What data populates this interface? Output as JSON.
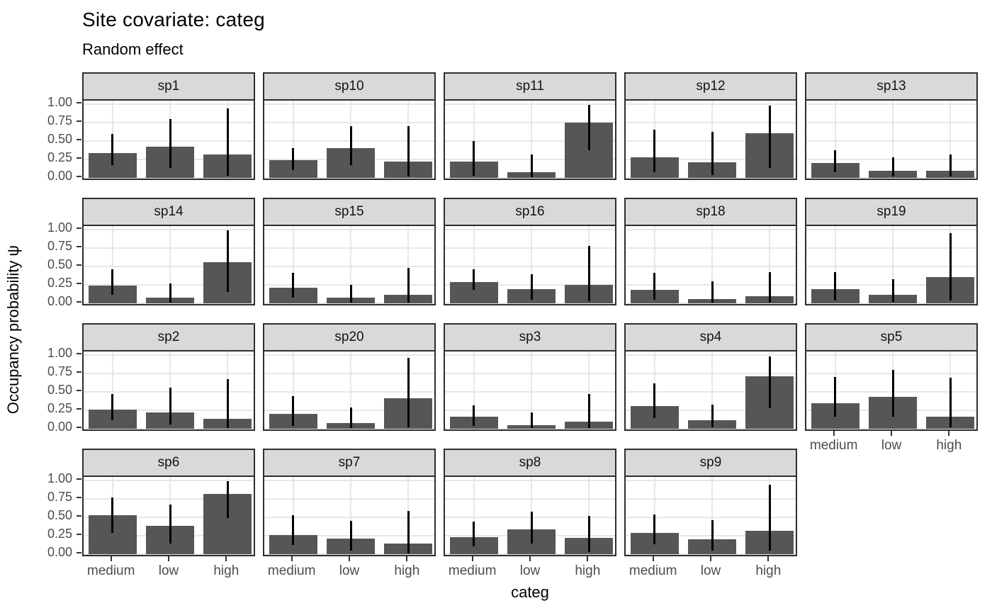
{
  "header": {
    "title": "Site covariate: categ",
    "subtitle": "Random effect"
  },
  "colors": {
    "bar_fill": "#565656",
    "error_bar": "#000000",
    "strip_background": "#D9D9D9",
    "panel_border": "#2E2E2E",
    "gridline": "#E7E7E7",
    "axis_text": "#4D4D4D",
    "title_text": "#000000"
  },
  "chart_data": {
    "type": "bar",
    "title": "Site covariate: categ",
    "subtitle": "Random effect",
    "xlabel": "categ",
    "ylabel": "Occupancy probability ψ",
    "categories": [
      "medium",
      "low",
      "high"
    ],
    "ylim": [
      0,
      1
    ],
    "y_tick_values": [
      1.0,
      0.75,
      0.5,
      0.25,
      0.0
    ],
    "y_tick_labels": [
      "1.00",
      "0.75",
      "0.50",
      "0.25",
      "0.00"
    ],
    "grid": true,
    "legend_position": "none",
    "error_bars": true,
    "facet_layout": {
      "rows": 4,
      "cols": 5
    },
    "facets": [
      {
        "label": "sp1",
        "row": 0,
        "col": 0,
        "values": [
          0.34,
          0.42,
          0.32
        ],
        "ci_low": [
          0.17,
          0.13,
          0.03
        ],
        "ci_high": [
          0.6,
          0.8,
          0.94
        ]
      },
      {
        "label": "sp10",
        "row": 0,
        "col": 1,
        "values": [
          0.24,
          0.4,
          0.22
        ],
        "ci_low": [
          0.1,
          0.17,
          0.02
        ],
        "ci_high": [
          0.4,
          0.7,
          0.7
        ]
      },
      {
        "label": "sp11",
        "row": 0,
        "col": 2,
        "values": [
          0.22,
          0.08,
          0.75
        ],
        "ci_low": [
          0.03,
          0.01,
          0.37
        ],
        "ci_high": [
          0.5,
          0.32,
          0.99
        ]
      },
      {
        "label": "sp12",
        "row": 0,
        "col": 3,
        "values": [
          0.28,
          0.21,
          0.61
        ],
        "ci_low": [
          0.08,
          0.04,
          0.13
        ],
        "ci_high": [
          0.65,
          0.63,
          0.98
        ]
      },
      {
        "label": "sp13",
        "row": 0,
        "col": 4,
        "values": [
          0.2,
          0.09,
          0.09
        ],
        "ci_low": [
          0.08,
          0.02,
          0.02
        ],
        "ci_high": [
          0.37,
          0.28,
          0.32
        ]
      },
      {
        "label": "sp14",
        "row": 1,
        "col": 0,
        "values": [
          0.24,
          0.08,
          0.56
        ],
        "ci_low": [
          0.11,
          0.01,
          0.15
        ],
        "ci_high": [
          0.46,
          0.27,
          0.99
        ]
      },
      {
        "label": "sp15",
        "row": 1,
        "col": 1,
        "values": [
          0.21,
          0.08,
          0.11
        ],
        "ci_low": [
          0.08,
          0.01,
          0.01
        ],
        "ci_high": [
          0.41,
          0.25,
          0.48
        ]
      },
      {
        "label": "sp16",
        "row": 1,
        "col": 2,
        "values": [
          0.29,
          0.19,
          0.25
        ],
        "ci_low": [
          0.18,
          0.05,
          0.03
        ],
        "ci_high": [
          0.46,
          0.39,
          0.78
        ]
      },
      {
        "label": "sp18",
        "row": 1,
        "col": 3,
        "values": [
          0.18,
          0.06,
          0.09
        ],
        "ci_low": [
          0.05,
          0.01,
          0.01
        ],
        "ci_high": [
          0.41,
          0.3,
          0.42
        ]
      },
      {
        "label": "sp19",
        "row": 1,
        "col": 4,
        "values": [
          0.19,
          0.11,
          0.36
        ],
        "ci_low": [
          0.04,
          0.02,
          0.04
        ],
        "ci_high": [
          0.42,
          0.33,
          0.95
        ]
      },
      {
        "label": "sp2",
        "row": 2,
        "col": 0,
        "values": [
          0.26,
          0.22,
          0.13
        ],
        "ci_low": [
          0.11,
          0.06,
          0.01
        ],
        "ci_high": [
          0.47,
          0.56,
          0.67
        ]
      },
      {
        "label": "sp20",
        "row": 2,
        "col": 1,
        "values": [
          0.2,
          0.08,
          0.41
        ],
        "ci_low": [
          0.04,
          0.01,
          0.02
        ],
        "ci_high": [
          0.44,
          0.29,
          0.96
        ]
      },
      {
        "label": "sp3",
        "row": 2,
        "col": 2,
        "values": [
          0.16,
          0.05,
          0.09
        ],
        "ci_low": [
          0.04,
          0.01,
          0.01
        ],
        "ci_high": [
          0.32,
          0.22,
          0.47
        ]
      },
      {
        "label": "sp4",
        "row": 2,
        "col": 3,
        "values": [
          0.31,
          0.11,
          0.71
        ],
        "ci_low": [
          0.14,
          0.02,
          0.28
        ],
        "ci_high": [
          0.62,
          0.33,
          0.98
        ]
      },
      {
        "label": "sp5",
        "row": 2,
        "col": 4,
        "values": [
          0.35,
          0.43,
          0.16
        ],
        "ci_low": [
          0.16,
          0.16,
          0.02
        ],
        "ci_high": [
          0.7,
          0.8,
          0.69
        ]
      },
      {
        "label": "sp6",
        "row": 3,
        "col": 0,
        "values": [
          0.53,
          0.38,
          0.82
        ],
        "ci_low": [
          0.29,
          0.14,
          0.49
        ],
        "ci_high": [
          0.77,
          0.67,
          0.99
        ]
      },
      {
        "label": "sp7",
        "row": 3,
        "col": 1,
        "values": [
          0.26,
          0.21,
          0.14
        ],
        "ci_low": [
          0.12,
          0.05,
          0.01
        ],
        "ci_high": [
          0.53,
          0.45,
          0.59
        ]
      },
      {
        "label": "sp8",
        "row": 3,
        "col": 2,
        "values": [
          0.23,
          0.34,
          0.22
        ],
        "ci_low": [
          0.1,
          0.14,
          0.03
        ],
        "ci_high": [
          0.44,
          0.58,
          0.52
        ]
      },
      {
        "label": "sp9",
        "row": 3,
        "col": 3,
        "values": [
          0.29,
          0.2,
          0.32
        ],
        "ci_low": [
          0.13,
          0.05,
          0.05
        ],
        "ci_high": [
          0.54,
          0.46,
          0.94
        ]
      }
    ]
  }
}
